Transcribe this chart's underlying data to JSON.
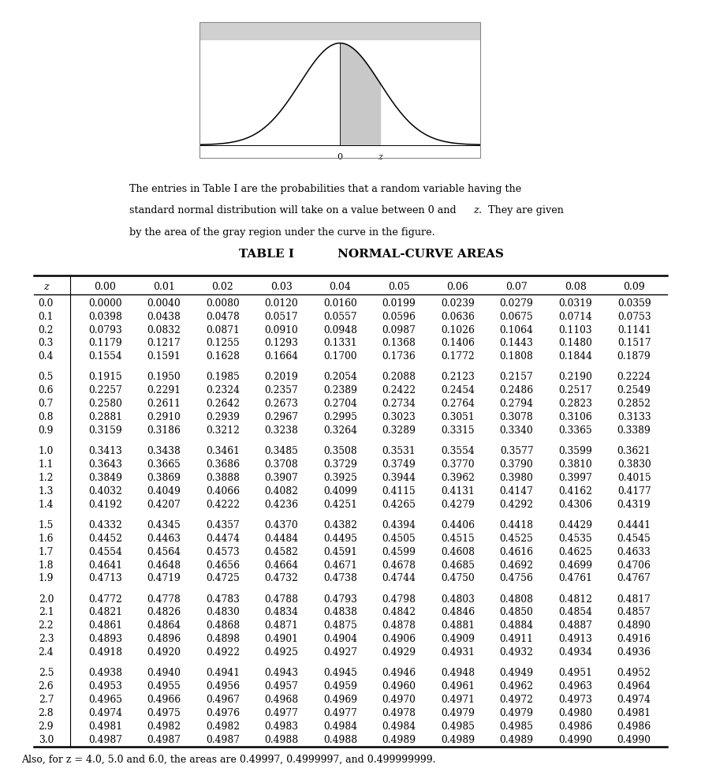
{
  "title1": "TABLE I",
  "title2": "NORMAL-CURVE AREAS",
  "description_parts": [
    "The entries in Table I are the probabilities that a random variable having the",
    "standard normal distribution will take on a value between 0 and",
    "z",
    ".  They are given",
    "by the area of the gray region under the curve in the figure."
  ],
  "footer": "Also, for z = 4.0, 5.0 and 6.0, the areas are 0.49997, 0.4999997, and 0.499999999.",
  "col_headers": [
    "0.00",
    "0.01",
    "0.02",
    "0.03",
    "0.04",
    "0.05",
    "0.06",
    "0.07",
    "0.08",
    "0.09"
  ],
  "row_headers": [
    "0.0",
    "0.1",
    "0.2",
    "0.3",
    "0.4",
    "0.5",
    "0.6",
    "0.7",
    "0.8",
    "0.9",
    "1.0",
    "1.1",
    "1.2",
    "1.3",
    "1.4",
    "1.5",
    "1.6",
    "1.7",
    "1.8",
    "1.9",
    "2.0",
    "2.1",
    "2.2",
    "2.3",
    "2.4",
    "2.5",
    "2.6",
    "2.7",
    "2.8",
    "2.9",
    "3.0"
  ],
  "table_data": [
    [
      "0.0000",
      "0.0040",
      "0.0080",
      "0.0120",
      "0.0160",
      "0.0199",
      "0.0239",
      "0.0279",
      "0.0319",
      "0.0359"
    ],
    [
      "0.0398",
      "0.0438",
      "0.0478",
      "0.0517",
      "0.0557",
      "0.0596",
      "0.0636",
      "0.0675",
      "0.0714",
      "0.0753"
    ],
    [
      "0.0793",
      "0.0832",
      "0.0871",
      "0.0910",
      "0.0948",
      "0.0987",
      "0.1026",
      "0.1064",
      "0.1103",
      "0.1141"
    ],
    [
      "0.1179",
      "0.1217",
      "0.1255",
      "0.1293",
      "0.1331",
      "0.1368",
      "0.1406",
      "0.1443",
      "0.1480",
      "0.1517"
    ],
    [
      "0.1554",
      "0.1591",
      "0.1628",
      "0.1664",
      "0.1700",
      "0.1736",
      "0.1772",
      "0.1808",
      "0.1844",
      "0.1879"
    ],
    [
      "0.1915",
      "0.1950",
      "0.1985",
      "0.2019",
      "0.2054",
      "0.2088",
      "0.2123",
      "0.2157",
      "0.2190",
      "0.2224"
    ],
    [
      "0.2257",
      "0.2291",
      "0.2324",
      "0.2357",
      "0.2389",
      "0.2422",
      "0.2454",
      "0.2486",
      "0.2517",
      "0.2549"
    ],
    [
      "0.2580",
      "0.2611",
      "0.2642",
      "0.2673",
      "0.2704",
      "0.2734",
      "0.2764",
      "0.2794",
      "0.2823",
      "0.2852"
    ],
    [
      "0.2881",
      "0.2910",
      "0.2939",
      "0.2967",
      "0.2995",
      "0.3023",
      "0.3051",
      "0.3078",
      "0.3106",
      "0.3133"
    ],
    [
      "0.3159",
      "0.3186",
      "0.3212",
      "0.3238",
      "0.3264",
      "0.3289",
      "0.3315",
      "0.3340",
      "0.3365",
      "0.3389"
    ],
    [
      "0.3413",
      "0.3438",
      "0.3461",
      "0.3485",
      "0.3508",
      "0.3531",
      "0.3554",
      "0.3577",
      "0.3599",
      "0.3621"
    ],
    [
      "0.3643",
      "0.3665",
      "0.3686",
      "0.3708",
      "0.3729",
      "0.3749",
      "0.3770",
      "0.3790",
      "0.3810",
      "0.3830"
    ],
    [
      "0.3849",
      "0.3869",
      "0.3888",
      "0.3907",
      "0.3925",
      "0.3944",
      "0.3962",
      "0.3980",
      "0.3997",
      "0.4015"
    ],
    [
      "0.4032",
      "0.4049",
      "0.4066",
      "0.4082",
      "0.4099",
      "0.4115",
      "0.4131",
      "0.4147",
      "0.4162",
      "0.4177"
    ],
    [
      "0.4192",
      "0.4207",
      "0.4222",
      "0.4236",
      "0.4251",
      "0.4265",
      "0.4279",
      "0.4292",
      "0.4306",
      "0.4319"
    ],
    [
      "0.4332",
      "0.4345",
      "0.4357",
      "0.4370",
      "0.4382",
      "0.4394",
      "0.4406",
      "0.4418",
      "0.4429",
      "0.4441"
    ],
    [
      "0.4452",
      "0.4463",
      "0.4474",
      "0.4484",
      "0.4495",
      "0.4505",
      "0.4515",
      "0.4525",
      "0.4535",
      "0.4545"
    ],
    [
      "0.4554",
      "0.4564",
      "0.4573",
      "0.4582",
      "0.4591",
      "0.4599",
      "0.4608",
      "0.4616",
      "0.4625",
      "0.4633"
    ],
    [
      "0.4641",
      "0.4648",
      "0.4656",
      "0.4664",
      "0.4671",
      "0.4678",
      "0.4685",
      "0.4692",
      "0.4699",
      "0.4706"
    ],
    [
      "0.4713",
      "0.4719",
      "0.4725",
      "0.4732",
      "0.4738",
      "0.4744",
      "0.4750",
      "0.4756",
      "0.4761",
      "0.4767"
    ],
    [
      "0.4772",
      "0.4778",
      "0.4783",
      "0.4788",
      "0.4793",
      "0.4798",
      "0.4803",
      "0.4808",
      "0.4812",
      "0.4817"
    ],
    [
      "0.4821",
      "0.4826",
      "0.4830",
      "0.4834",
      "0.4838",
      "0.4842",
      "0.4846",
      "0.4850",
      "0.4854",
      "0.4857"
    ],
    [
      "0.4861",
      "0.4864",
      "0.4868",
      "0.4871",
      "0.4875",
      "0.4878",
      "0.4881",
      "0.4884",
      "0.4887",
      "0.4890"
    ],
    [
      "0.4893",
      "0.4896",
      "0.4898",
      "0.4901",
      "0.4904",
      "0.4906",
      "0.4909",
      "0.4911",
      "0.4913",
      "0.4916"
    ],
    [
      "0.4918",
      "0.4920",
      "0.4922",
      "0.4925",
      "0.4927",
      "0.4929",
      "0.4931",
      "0.4932",
      "0.4934",
      "0.4936"
    ],
    [
      "0.4938",
      "0.4940",
      "0.4941",
      "0.4943",
      "0.4945",
      "0.4946",
      "0.4948",
      "0.4949",
      "0.4951",
      "0.4952"
    ],
    [
      "0.4953",
      "0.4955",
      "0.4956",
      "0.4957",
      "0.4959",
      "0.4960",
      "0.4961",
      "0.4962",
      "0.4963",
      "0.4964"
    ],
    [
      "0.4965",
      "0.4966",
      "0.4967",
      "0.4968",
      "0.4969",
      "0.4970",
      "0.4971",
      "0.4972",
      "0.4973",
      "0.4974"
    ],
    [
      "0.4974",
      "0.4975",
      "0.4976",
      "0.4977",
      "0.4977",
      "0.4978",
      "0.4979",
      "0.4979",
      "0.4980",
      "0.4981"
    ],
    [
      "0.4981",
      "0.4982",
      "0.4982",
      "0.4983",
      "0.4984",
      "0.4984",
      "0.4985",
      "0.4985",
      "0.4986",
      "0.4986"
    ],
    [
      "0.4987",
      "0.4987",
      "0.4987",
      "0.4988",
      "0.4988",
      "0.4989",
      "0.4989",
      "0.4989",
      "0.4990",
      "0.4990"
    ]
  ],
  "group_breaks_after": [
    5,
    10,
    15,
    20,
    25
  ],
  "page_bg": "#ffffff",
  "header_bar_color": "#d0d0d0",
  "curve_fill_color": "#c8c8c8",
  "curve_box_color": "#888888"
}
